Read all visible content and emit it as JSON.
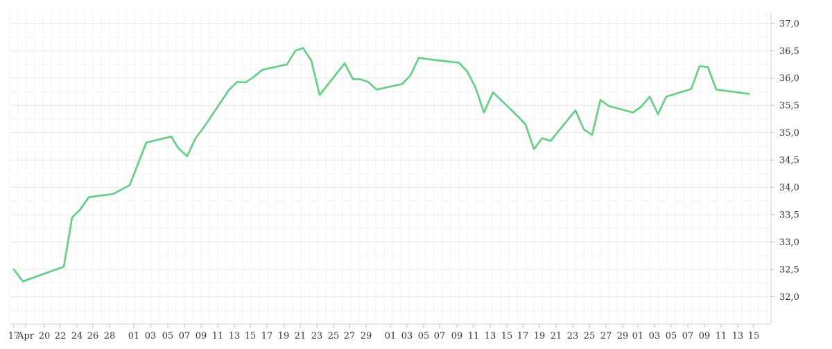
{
  "chart_data": {
    "type": "line",
    "title": "",
    "xlabel": "",
    "ylabel": "",
    "x_tick_labels": [
      "17",
      "Apr",
      "20",
      "22",
      "24",
      "26",
      "28",
      "01",
      "03",
      "05",
      "07",
      "09",
      "11",
      "13",
      "15",
      "17",
      "19",
      "21",
      "23",
      "25",
      "27",
      "29",
      "01",
      "03",
      "05",
      "07",
      "09",
      "11",
      "13",
      "15",
      "17",
      "19",
      "21",
      "23",
      "25",
      "27",
      "29",
      "01",
      "03",
      "05",
      "07",
      "09",
      "11",
      "13",
      "15"
    ],
    "y_ticks": [
      "32,0",
      "32,5",
      "33,0",
      "33,5",
      "34,0",
      "34,5",
      "35,0",
      "35,5",
      "36,0",
      "36,5",
      "37,0"
    ],
    "ylim": [
      31.5,
      37.2
    ],
    "grid": true,
    "line_color": "#5ad27e",
    "series": [
      {
        "values": [
          32.5,
          32.28,
          32.55,
          33.45,
          33.6,
          33.82,
          33.88,
          34.04,
          34.82,
          34.93,
          34.72,
          34.57,
          34.9,
          35.1,
          35.78,
          35.93,
          35.92,
          36.02,
          36.15,
          36.25,
          36.5,
          36.55,
          36.32,
          35.69,
          36.27,
          35.98,
          35.98,
          35.93,
          35.79,
          35.89,
          36.05,
          36.37,
          36.33,
          36.28,
          36.12,
          35.82,
          35.37,
          35.74,
          35.31,
          35.15,
          34.7,
          34.9,
          34.85,
          35.41,
          35.06,
          34.96,
          35.6,
          35.49,
          35.37,
          35.48,
          35.66,
          35.34,
          35.66,
          35.8,
          36.22,
          36.2,
          35.79,
          35.71
        ]
      }
    ]
  }
}
